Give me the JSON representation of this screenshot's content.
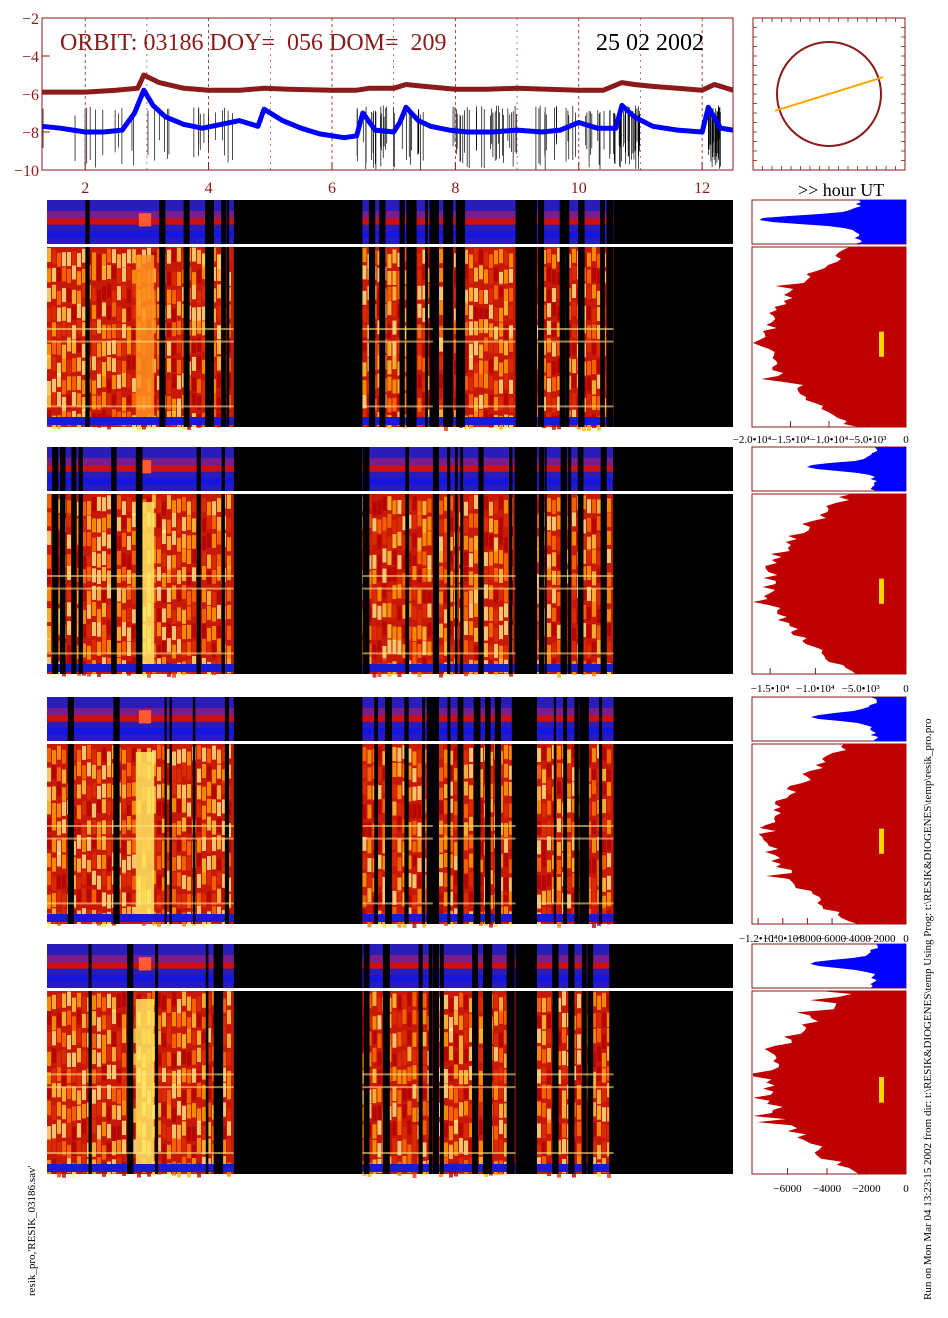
{
  "header": {
    "orbit_text": "ORBIT: 03186 DOY=  056 DOM=  209",
    "date_text": "25 02 2002",
    "hour_label": ">> hour UT"
  },
  "colors": {
    "frame": "#8b1a1a",
    "upper_curve": "#8b1a1a",
    "lower_curve": "#0000ff",
    "histogram_top": "#0000ff",
    "histogram_main": "#bf0000",
    "marker": "#ffd700",
    "orbit_line": "#ffa500",
    "background": "#000000"
  },
  "chart_data": [
    {
      "type": "line",
      "name": "orbit-lightcurves",
      "ylim": [
        -10,
        -2
      ],
      "yticks": [
        -2,
        -4,
        -6,
        -8,
        -10
      ],
      "xlim": [
        1.3,
        12.5
      ],
      "xticks": [
        2,
        4,
        6,
        8,
        10,
        12
      ],
      "grid": true,
      "series": [
        {
          "x": [
            1.3,
            2.0,
            2.5,
            2.85,
            2.95,
            3.2,
            3.6,
            4.0,
            4.5,
            4.9,
            5.3,
            6.0,
            6.4,
            6.6,
            7.0,
            7.2,
            7.5,
            8.0,
            8.5,
            9.0,
            9.5,
            10.0,
            10.4,
            10.7,
            10.9,
            11.2,
            11.6,
            12.0,
            12.2,
            12.5
          ],
          "values": [
            -5.9,
            -5.9,
            -5.8,
            -5.7,
            -5.0,
            -5.4,
            -5.7,
            -5.8,
            -5.8,
            -5.7,
            -5.75,
            -5.8,
            -5.8,
            -5.7,
            -5.7,
            -5.5,
            -5.6,
            -5.75,
            -5.75,
            -5.7,
            -5.75,
            -5.8,
            -5.8,
            -5.4,
            -5.5,
            -5.6,
            -5.7,
            -5.8,
            -5.5,
            -5.8
          ]
        },
        {
          "x": [
            1.3,
            1.6,
            2.0,
            2.3,
            2.6,
            2.8,
            2.95,
            3.1,
            3.3,
            3.6,
            3.9,
            4.2,
            4.5,
            4.8,
            4.9,
            5.2,
            5.5,
            5.8,
            6.2,
            6.4,
            6.5,
            6.7,
            7.0,
            7.1,
            7.2,
            7.4,
            7.6,
            7.9,
            8.2,
            8.6,
            9.0,
            9.4,
            9.7,
            10.0,
            10.3,
            10.6,
            10.7,
            10.9,
            11.2,
            11.6,
            12.0,
            12.1,
            12.3,
            12.5
          ],
          "values": [
            -7.7,
            -7.8,
            -8.0,
            -8.0,
            -7.9,
            -7.0,
            -5.8,
            -6.6,
            -7.2,
            -7.6,
            -7.8,
            -7.6,
            -7.4,
            -7.7,
            -6.8,
            -7.4,
            -7.8,
            -8.1,
            -8.3,
            -8.2,
            -7.0,
            -7.9,
            -8.0,
            -7.5,
            -6.7,
            -7.4,
            -7.7,
            -7.9,
            -8.0,
            -8.0,
            -7.9,
            -8.0,
            -7.9,
            -7.5,
            -7.8,
            -7.8,
            -6.6,
            -7.2,
            -7.7,
            -7.9,
            -8.0,
            -6.7,
            -7.8,
            -7.9
          ]
        }
      ]
    },
    {
      "type": "scatter",
      "name": "orbit-track",
      "xlim": [
        -1,
        1
      ],
      "ylim": [
        -1,
        1
      ],
      "series": [
        {
          "x": [
            -0.9,
            0.9
          ],
          "values": [
            -0.28,
            0.28
          ]
        }
      ]
    },
    {
      "type": "heatmap",
      "name": "spectrogram-panels",
      "xlim": [
        1.3,
        12.5
      ],
      "panels": 4,
      "active_time_ranges": [
        [
          1.3,
          4.35
        ],
        [
          6.45,
          7.6
        ],
        [
          7.7,
          8.95
        ],
        [
          9.3,
          10.55
        ]
      ]
    },
    {
      "type": "area",
      "name": "panel-1-histogram",
      "xlim": [
        -20000,
        0
      ],
      "xticks": [
        -20000,
        -15000,
        -10000,
        -5000,
        0
      ],
      "xtick_labels": [
        "−2.0•10⁴",
        "−1.5•10⁴",
        "−1.0•10⁴",
        "−5.0•10³",
        "0"
      ]
    },
    {
      "type": "area",
      "name": "panel-2-histogram",
      "xlim": [
        -17000,
        0
      ],
      "xticks": [
        -15000,
        -10000,
        -5000,
        0
      ],
      "xtick_labels": [
        "−1.5•10⁴",
        "−1.0•10⁴",
        "−5.0•10³",
        "0"
      ]
    },
    {
      "type": "area",
      "name": "panel-3-histogram",
      "xlim": [
        -12500,
        0
      ],
      "xticks": [
        -12000,
        -10000,
        -8000,
        -6000,
        -4000,
        -2000,
        0
      ],
      "xtick_labels": [
        "−1.2•10⁴",
        "−1.0•10⁴",
        "−8000",
        "−6000",
        "−4000",
        "−2000",
        "0"
      ]
    },
    {
      "type": "area",
      "name": "panel-4-histogram",
      "xlim": [
        -7800,
        0
      ],
      "xticks": [
        -6000,
        -4000,
        -2000,
        0
      ],
      "xtick_labels": [
        "−6000",
        "−4000",
        "−2000",
        "0"
      ]
    }
  ],
  "footer": {
    "left_note": "resik_pro,'RESIK_03186.sav'",
    "right_note": "Run on Mon Mar 04 13:23:15 2002  from dir: t:\\RESIK&DIOGENES\\temp Using Prog: t:\\RESIK&DIOGENES\\temp\\resik_pro.pro"
  }
}
